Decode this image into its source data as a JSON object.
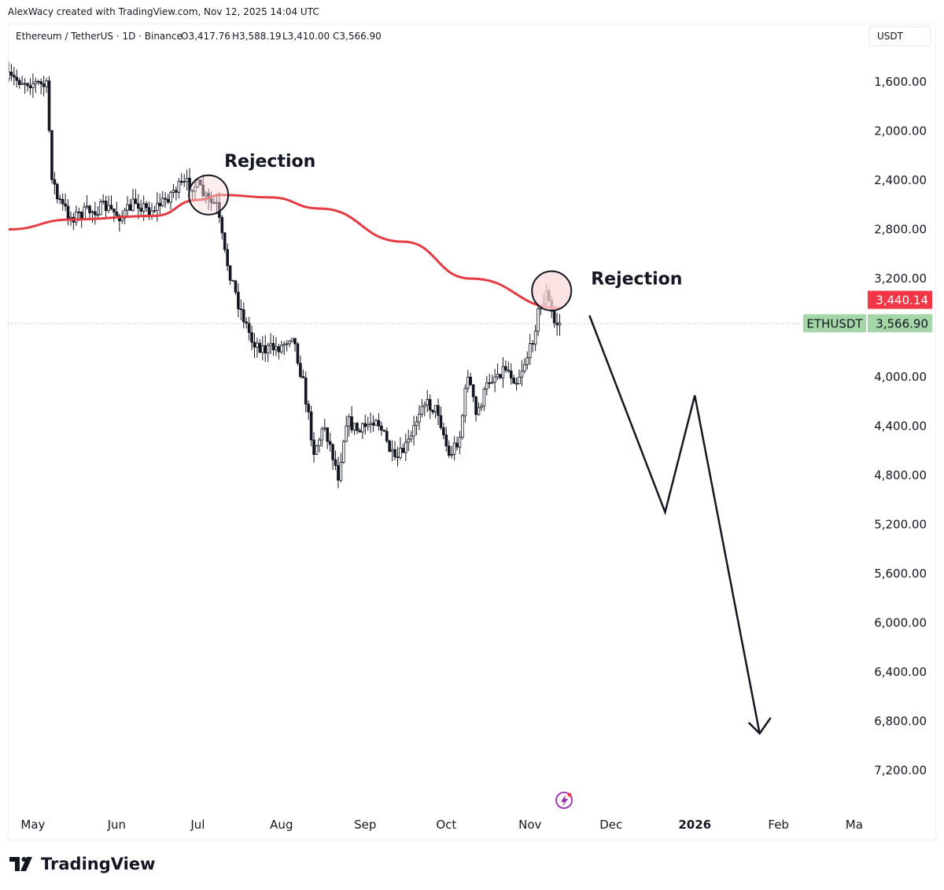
{
  "credit": "AlexWacy created with TradingView.com, Nov 12, 2025 14:04 UTC",
  "brand": "TradingView",
  "colors": {
    "up": "#131722",
    "down": "#131722",
    "ma_line": "#e53b42",
    "ma_badge": "#f23645",
    "price_badge": "#a5d6a7",
    "circle_fill": "#fbdada"
  },
  "chart_data": {
    "type": "candlestick",
    "title": "",
    "legend": {
      "symbol": "Ethereum / TetherUS · 1D · Binance",
      "open": "O3,417.76",
      "high": "H3,588.19",
      "low": "L3,410.00",
      "close": "C3,566.90"
    },
    "currency": "USDT",
    "y_axis": {
      "inverted": true,
      "range": [
        1400,
        7500
      ],
      "ticks": [
        "1,600.00",
        "2,000.00",
        "2,400.00",
        "2,800.00",
        "3,200.00",
        "4,000.00",
        "4,400.00",
        "4,800.00",
        "5,200.00",
        "5,600.00",
        "6,000.00",
        "6,400.00",
        "6,800.00",
        "7,200.00"
      ]
    },
    "x_axis": {
      "ticks": [
        "May",
        "Jun",
        "Jul",
        "Aug",
        "Sep",
        "Oct",
        "Nov",
        "Dec",
        "2026",
        "Feb",
        "Ma"
      ],
      "range": [
        "2025-04-22",
        "2026-03-06"
      ]
    },
    "series_anchor_points": [
      [
        "2025-04-22",
        1575
      ],
      [
        "2025-04-27",
        1590
      ],
      [
        "2025-05-02",
        1610
      ],
      [
        "2025-05-06",
        1640
      ],
      [
        "2025-05-08",
        2350
      ],
      [
        "2025-05-10",
        2550
      ],
      [
        "2025-05-15",
        2700
      ],
      [
        "2025-05-22",
        2650
      ],
      [
        "2025-05-28",
        2620
      ],
      [
        "2025-06-03",
        2700
      ],
      [
        "2025-06-08",
        2570
      ],
      [
        "2025-06-13",
        2650
      ],
      [
        "2025-06-18",
        2580
      ],
      [
        "2025-06-22",
        2480
      ],
      [
        "2025-06-27",
        2430
      ],
      [
        "2025-07-01",
        2450
      ],
      [
        "2025-07-05",
        2580
      ],
      [
        "2025-07-08",
        2610
      ],
      [
        "2025-07-11",
        3000
      ],
      [
        "2025-07-16",
        3400
      ],
      [
        "2025-07-21",
        3700
      ],
      [
        "2025-07-26",
        3780
      ],
      [
        "2025-08-01",
        3750
      ],
      [
        "2025-08-05",
        3640
      ],
      [
        "2025-08-09",
        4050
      ],
      [
        "2025-08-13",
        4600
      ],
      [
        "2025-08-17",
        4400
      ],
      [
        "2025-08-22",
        4800
      ],
      [
        "2025-08-25",
        4350
      ],
      [
        "2025-08-30",
        4450
      ],
      [
        "2025-09-05",
        4320
      ],
      [
        "2025-09-12",
        4700
      ],
      [
        "2025-09-18",
        4500
      ],
      [
        "2025-09-22",
        4190
      ],
      [
        "2025-09-28",
        4280
      ],
      [
        "2025-10-02",
        4650
      ],
      [
        "2025-10-06",
        4480
      ],
      [
        "2025-10-09",
        3960
      ],
      [
        "2025-10-12",
        4320
      ],
      [
        "2025-10-17",
        4020
      ],
      [
        "2025-10-23",
        3920
      ],
      [
        "2025-10-27",
        4030
      ],
      [
        "2025-11-01",
        3780
      ],
      [
        "2025-11-04",
        3480
      ],
      [
        "2025-11-07",
        3320
      ],
      [
        "2025-11-10",
        3560
      ],
      [
        "2025-11-12",
        3567
      ]
    ],
    "moving_average": [
      [
        "2025-04-22",
        2800
      ],
      [
        "2025-05-15",
        2720
      ],
      [
        "2025-06-15",
        2690
      ],
      [
        "2025-07-01",
        2560
      ],
      [
        "2025-07-10",
        2520
      ],
      [
        "2025-07-28",
        2540
      ],
      [
        "2025-08-15",
        2630
      ],
      [
        "2025-09-15",
        2900
      ],
      [
        "2025-10-10",
        3200
      ],
      [
        "2025-11-12",
        3440
      ]
    ],
    "annotations": [
      {
        "text": "Rejection",
        "date": "2025-07-05"
      },
      {
        "text": "Rejection",
        "date": "2025-11-09"
      }
    ],
    "price_labels": [
      {
        "text": "3,440.14",
        "kind": "ma"
      },
      {
        "text": "3,566.90",
        "kind": "last"
      }
    ],
    "symbol_badge": "ETHUSDT",
    "projection_path": [
      [
        "2025-11-23",
        3500
      ],
      [
        "2025-12-21",
        5100
      ],
      [
        "2026-01-01",
        4150
      ],
      [
        "2026-01-25",
        6900
      ]
    ]
  }
}
